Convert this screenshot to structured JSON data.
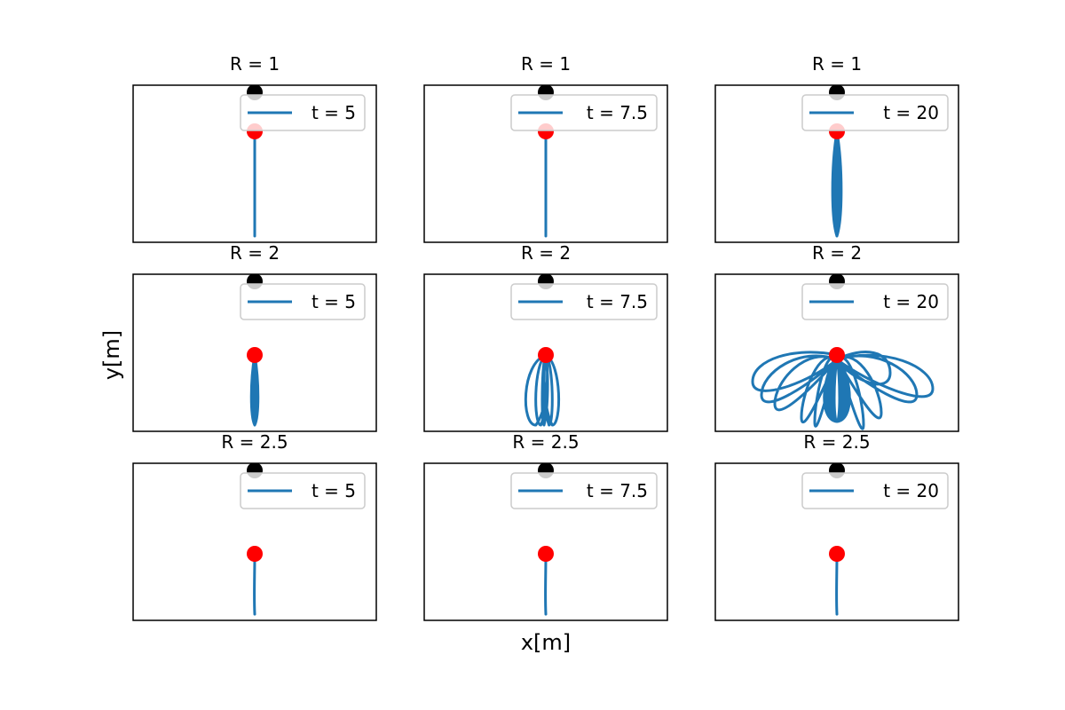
{
  "figure": {
    "xlabel": "x[m]",
    "ylabel": "y[m]"
  },
  "colors": {
    "trajectory": "#1f77b4",
    "pivot": "#000000",
    "bob": "#ff0000",
    "frame": "#000000",
    "legend_border": "#cccccc"
  },
  "chart_data": [
    {
      "type": "line",
      "title": "R = 1",
      "legend": [
        "t = 5"
      ],
      "trajectory": "straight",
      "bob": [
        0,
        0.6
      ]
    },
    {
      "type": "line",
      "title": "R = 1",
      "legend": [
        "t = 7.5"
      ],
      "trajectory": "straight",
      "bob": [
        0,
        0.6
      ]
    },
    {
      "type": "line",
      "title": "R = 1",
      "legend": [
        "t = 20"
      ],
      "trajectory": "narrow-loops",
      "bob": [
        0,
        0.6
      ]
    },
    {
      "type": "line",
      "title": "R = 2",
      "legend": [
        "t = 5"
      ],
      "trajectory": "narrow",
      "bob": [
        0,
        0.4
      ]
    },
    {
      "type": "line",
      "title": "R = 2",
      "legend": [
        "t = 7.5"
      ],
      "trajectory": "loops",
      "bob": [
        0,
        0.4
      ]
    },
    {
      "type": "line",
      "title": "R = 2",
      "legend": [
        "t = 20"
      ],
      "trajectory": "wide-loops",
      "bob": [
        0,
        0.4
      ]
    },
    {
      "type": "line",
      "title": "R = 2.5",
      "legend": [
        "t = 5"
      ],
      "trajectory": "short",
      "bob": [
        0,
        0.35
      ]
    },
    {
      "type": "line",
      "title": "R = 2.5",
      "legend": [
        "t = 7.5"
      ],
      "trajectory": "short",
      "bob": [
        0,
        0.35
      ]
    },
    {
      "type": "line",
      "title": "R = 2.5",
      "legend": [
        "t = 20"
      ],
      "trajectory": "short",
      "bob": [
        0,
        0.35
      ]
    }
  ]
}
